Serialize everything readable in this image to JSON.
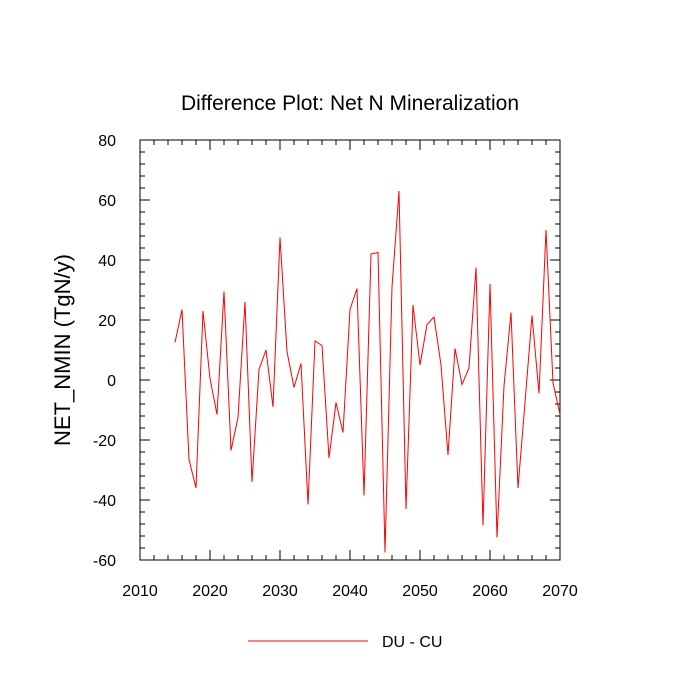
{
  "chart_data": {
    "type": "line",
    "title": "Difference Plot: Net N Mineralization",
    "xlabel": "",
    "ylabel": "NET_NMIN  (TgN/y)",
    "xlim": [
      2010,
      2070
    ],
    "ylim": [
      -60,
      80
    ],
    "x_ticks": [
      2010,
      2020,
      2030,
      2040,
      2050,
      2060,
      2070
    ],
    "y_ticks": [
      -60,
      -40,
      -20,
      0,
      20,
      40,
      60,
      80
    ],
    "x_minor_step": 2,
    "y_minor_step": 4,
    "grid": false,
    "legend_position": "bottom-center",
    "series": [
      {
        "name": "DU - CU",
        "color": "#ff0000",
        "x": [
          2015,
          2016,
          2017,
          2018,
          2019,
          2020,
          2021,
          2022,
          2023,
          2024,
          2025,
          2026,
          2027,
          2028,
          2029,
          2030,
          2031,
          2032,
          2033,
          2034,
          2035,
          2036,
          2037,
          2038,
          2039,
          2040,
          2041,
          2042,
          2043,
          2044,
          2045,
          2046,
          2047,
          2048,
          2049,
          2050,
          2051,
          2052,
          2053,
          2054,
          2055,
          2056,
          2057,
          2058,
          2059,
          2060,
          2061,
          2062,
          2063,
          2064,
          2065,
          2066,
          2067,
          2068,
          2069,
          2070
        ],
        "values": [
          12.5,
          23.5,
          -26.5,
          -36,
          23,
          0.5,
          -11.5,
          29.5,
          -23.5,
          -12.5,
          26,
          -34,
          3.5,
          10,
          -9,
          47.5,
          9.5,
          -2.5,
          5.5,
          -41.5,
          13,
          11.5,
          -26,
          -7.5,
          -17.5,
          23.5,
          30.5,
          -38.5,
          42,
          42.5,
          -57.5,
          31,
          63,
          -43,
          25,
          5,
          18.5,
          21,
          5,
          -25,
          10.5,
          -1.5,
          4,
          37.5,
          -48.5,
          32,
          -52.5,
          -2,
          22.5,
          -36,
          -7.5,
          21.5,
          -4.5,
          50,
          -1,
          -11.5
        ]
      }
    ]
  }
}
